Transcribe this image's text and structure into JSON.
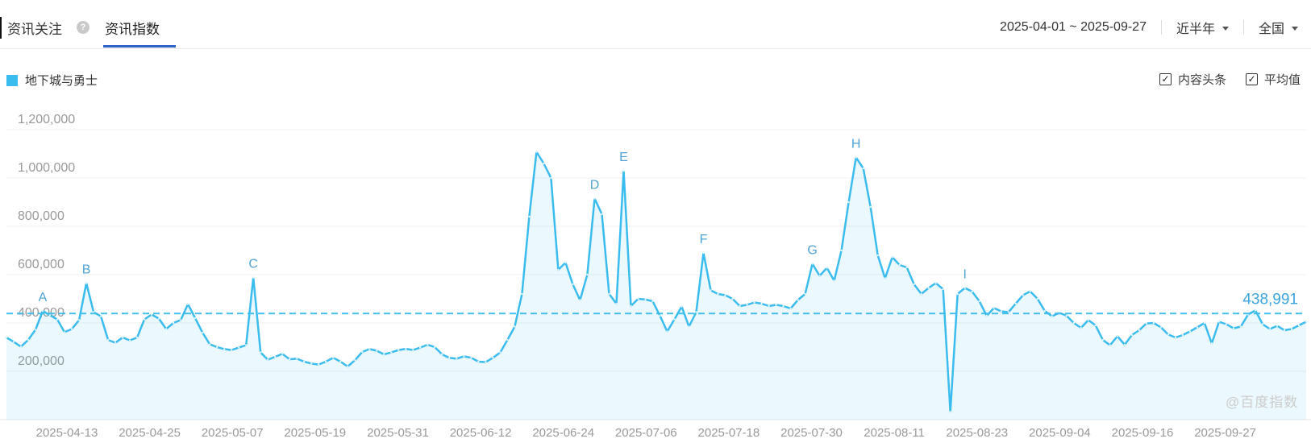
{
  "header": {
    "tab_inactive": "资讯关注",
    "help_glyph": "?",
    "tab_active": "资讯指数",
    "date_range": "2025-04-01 ~ 2025-09-27",
    "period_select": "近半年",
    "region_select": "全国"
  },
  "legend": {
    "series_label": "地下城与勇士",
    "series_color": "#3bbcee"
  },
  "toggles": {
    "news_label": "内容头条",
    "news_checked": true,
    "check_glyph": "✓",
    "average_label": "平均值",
    "average_checked": true
  },
  "watermark": "@百度指数",
  "chart_data": {
    "type": "line",
    "series_name": "地下城与勇士",
    "frequency": "daily",
    "start_date": "2025-04-01",
    "end_date": "2025-09-27",
    "x_labels": [
      "2025-04-13",
      "2025-04-25",
      "2025-05-07",
      "2025-05-19",
      "2025-05-31",
      "2025-06-12",
      "2025-06-24",
      "2025-07-06",
      "2025-07-18",
      "2025-07-30",
      "2025-08-11",
      "2025-08-23",
      "2025-09-04",
      "2025-09-16",
      "2025-09-27"
    ],
    "y_ticks": [
      200000,
      400000,
      600000,
      800000,
      1000000,
      1200000
    ],
    "y_tick_labels": [
      "200,000",
      "400,000",
      "600,000",
      "800,000",
      "1,000,000",
      "1,200,000"
    ],
    "ylim": [
      0,
      1260000
    ],
    "grid": true,
    "legend_position": "top-left",
    "average": 438991,
    "average_label": "438,991",
    "line_color": "#3bbcee",
    "fill_color": "rgba(59,188,238,0.10)",
    "marker_color": "#4fa3d2",
    "axis_color": "#999999",
    "values": [
      340000,
      322000,
      302000,
      330000,
      372000,
      450000,
      432000,
      415000,
      362000,
      375000,
      412000,
      565000,
      445000,
      428000,
      330000,
      318000,
      340000,
      328000,
      340000,
      415000,
      435000,
      418000,
      375000,
      400000,
      412000,
      478000,
      420000,
      360000,
      312000,
      300000,
      292000,
      288000,
      298000,
      308000,
      588000,
      278000,
      248000,
      260000,
      272000,
      250000,
      252000,
      240000,
      232000,
      228000,
      240000,
      256000,
      240000,
      220000,
      246000,
      280000,
      292000,
      285000,
      270000,
      278000,
      288000,
      293000,
      288000,
      298000,
      310000,
      300000,
      270000,
      256000,
      252000,
      262000,
      256000,
      240000,
      238000,
      256000,
      278000,
      330000,
      385000,
      520000,
      840000,
      1108000,
      1060000,
      1000000,
      620000,
      650000,
      560000,
      495000,
      600000,
      915000,
      850000,
      520000,
      480000,
      1030000,
      470000,
      500000,
      497000,
      490000,
      430000,
      365000,
      415000,
      468000,
      385000,
      445000,
      690000,
      535000,
      520000,
      515000,
      500000,
      470000,
      475000,
      485000,
      480000,
      470000,
      475000,
      470000,
      460000,
      495000,
      520000,
      645000,
      595000,
      628000,
      575000,
      700000,
      900000,
      1085000,
      1040000,
      880000,
      680000,
      585000,
      672000,
      640000,
      630000,
      560000,
      520000,
      545000,
      565000,
      540000,
      32000,
      520000,
      545000,
      530000,
      490000,
      430000,
      462000,
      448000,
      445000,
      480000,
      515000,
      531000,
      500000,
      450000,
      428000,
      442000,
      430000,
      400000,
      380000,
      412000,
      390000,
      330000,
      308000,
      345000,
      310000,
      350000,
      370000,
      398000,
      400000,
      382000,
      352000,
      340000,
      350000,
      365000,
      382000,
      400000,
      315000,
      405000,
      395000,
      378000,
      385000,
      435000,
      452000,
      395000,
      375000,
      388000,
      370000,
      375000,
      390000,
      405000
    ],
    "markers": [
      {
        "label": "A",
        "index": 5
      },
      {
        "label": "B",
        "index": 11
      },
      {
        "label": "C",
        "index": 34
      },
      {
        "label": "D",
        "index": 81
      },
      {
        "label": "E",
        "index": 85
      },
      {
        "label": "F",
        "index": 96
      },
      {
        "label": "G",
        "index": 111
      },
      {
        "label": "H",
        "index": 117
      },
      {
        "label": "I",
        "index": 132
      }
    ]
  }
}
